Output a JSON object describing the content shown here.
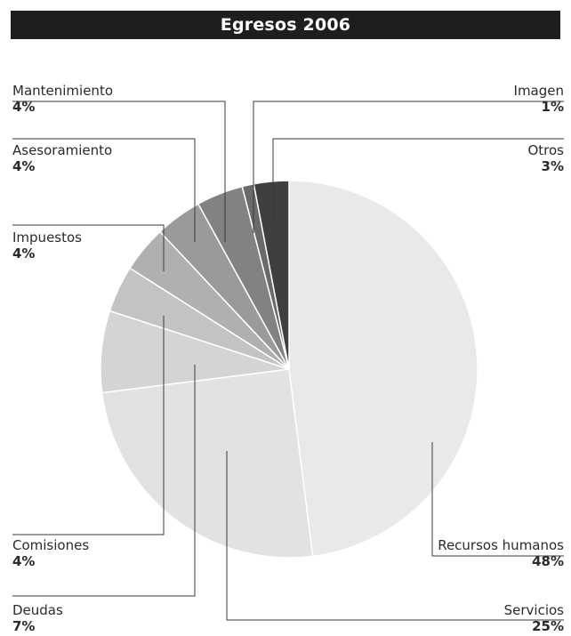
{
  "chart_data": {
    "type": "pie",
    "title": "Egresos 2006",
    "slices": [
      {
        "name": "Recursos humanos",
        "pct_label": "48%",
        "value": 48,
        "color": "#e9e9e9"
      },
      {
        "name": "Servicios",
        "pct_label": "25%",
        "value": 25,
        "color": "#e2e2e2"
      },
      {
        "name": "Deudas",
        "pct_label": "7%",
        "value": 7,
        "color": "#d4d4d4"
      },
      {
        "name": "Comisiones",
        "pct_label": "4%",
        "value": 4,
        "color": "#c3c3c3"
      },
      {
        "name": "Impuestos",
        "pct_label": "4%",
        "value": 4,
        "color": "#b0b0b0"
      },
      {
        "name": "Asesoramiento",
        "pct_label": "4%",
        "value": 4,
        "color": "#9a9a9a"
      },
      {
        "name": "Mantenimiento",
        "pct_label": "4%",
        "value": 4,
        "color": "#828282"
      },
      {
        "name": "Imagen",
        "pct_label": "1%",
        "value": 1,
        "color": "#6a6a6a"
      },
      {
        "name": "Otros",
        "pct_label": "3%",
        "value": 3,
        "color": "#3f3f3f"
      }
    ]
  }
}
